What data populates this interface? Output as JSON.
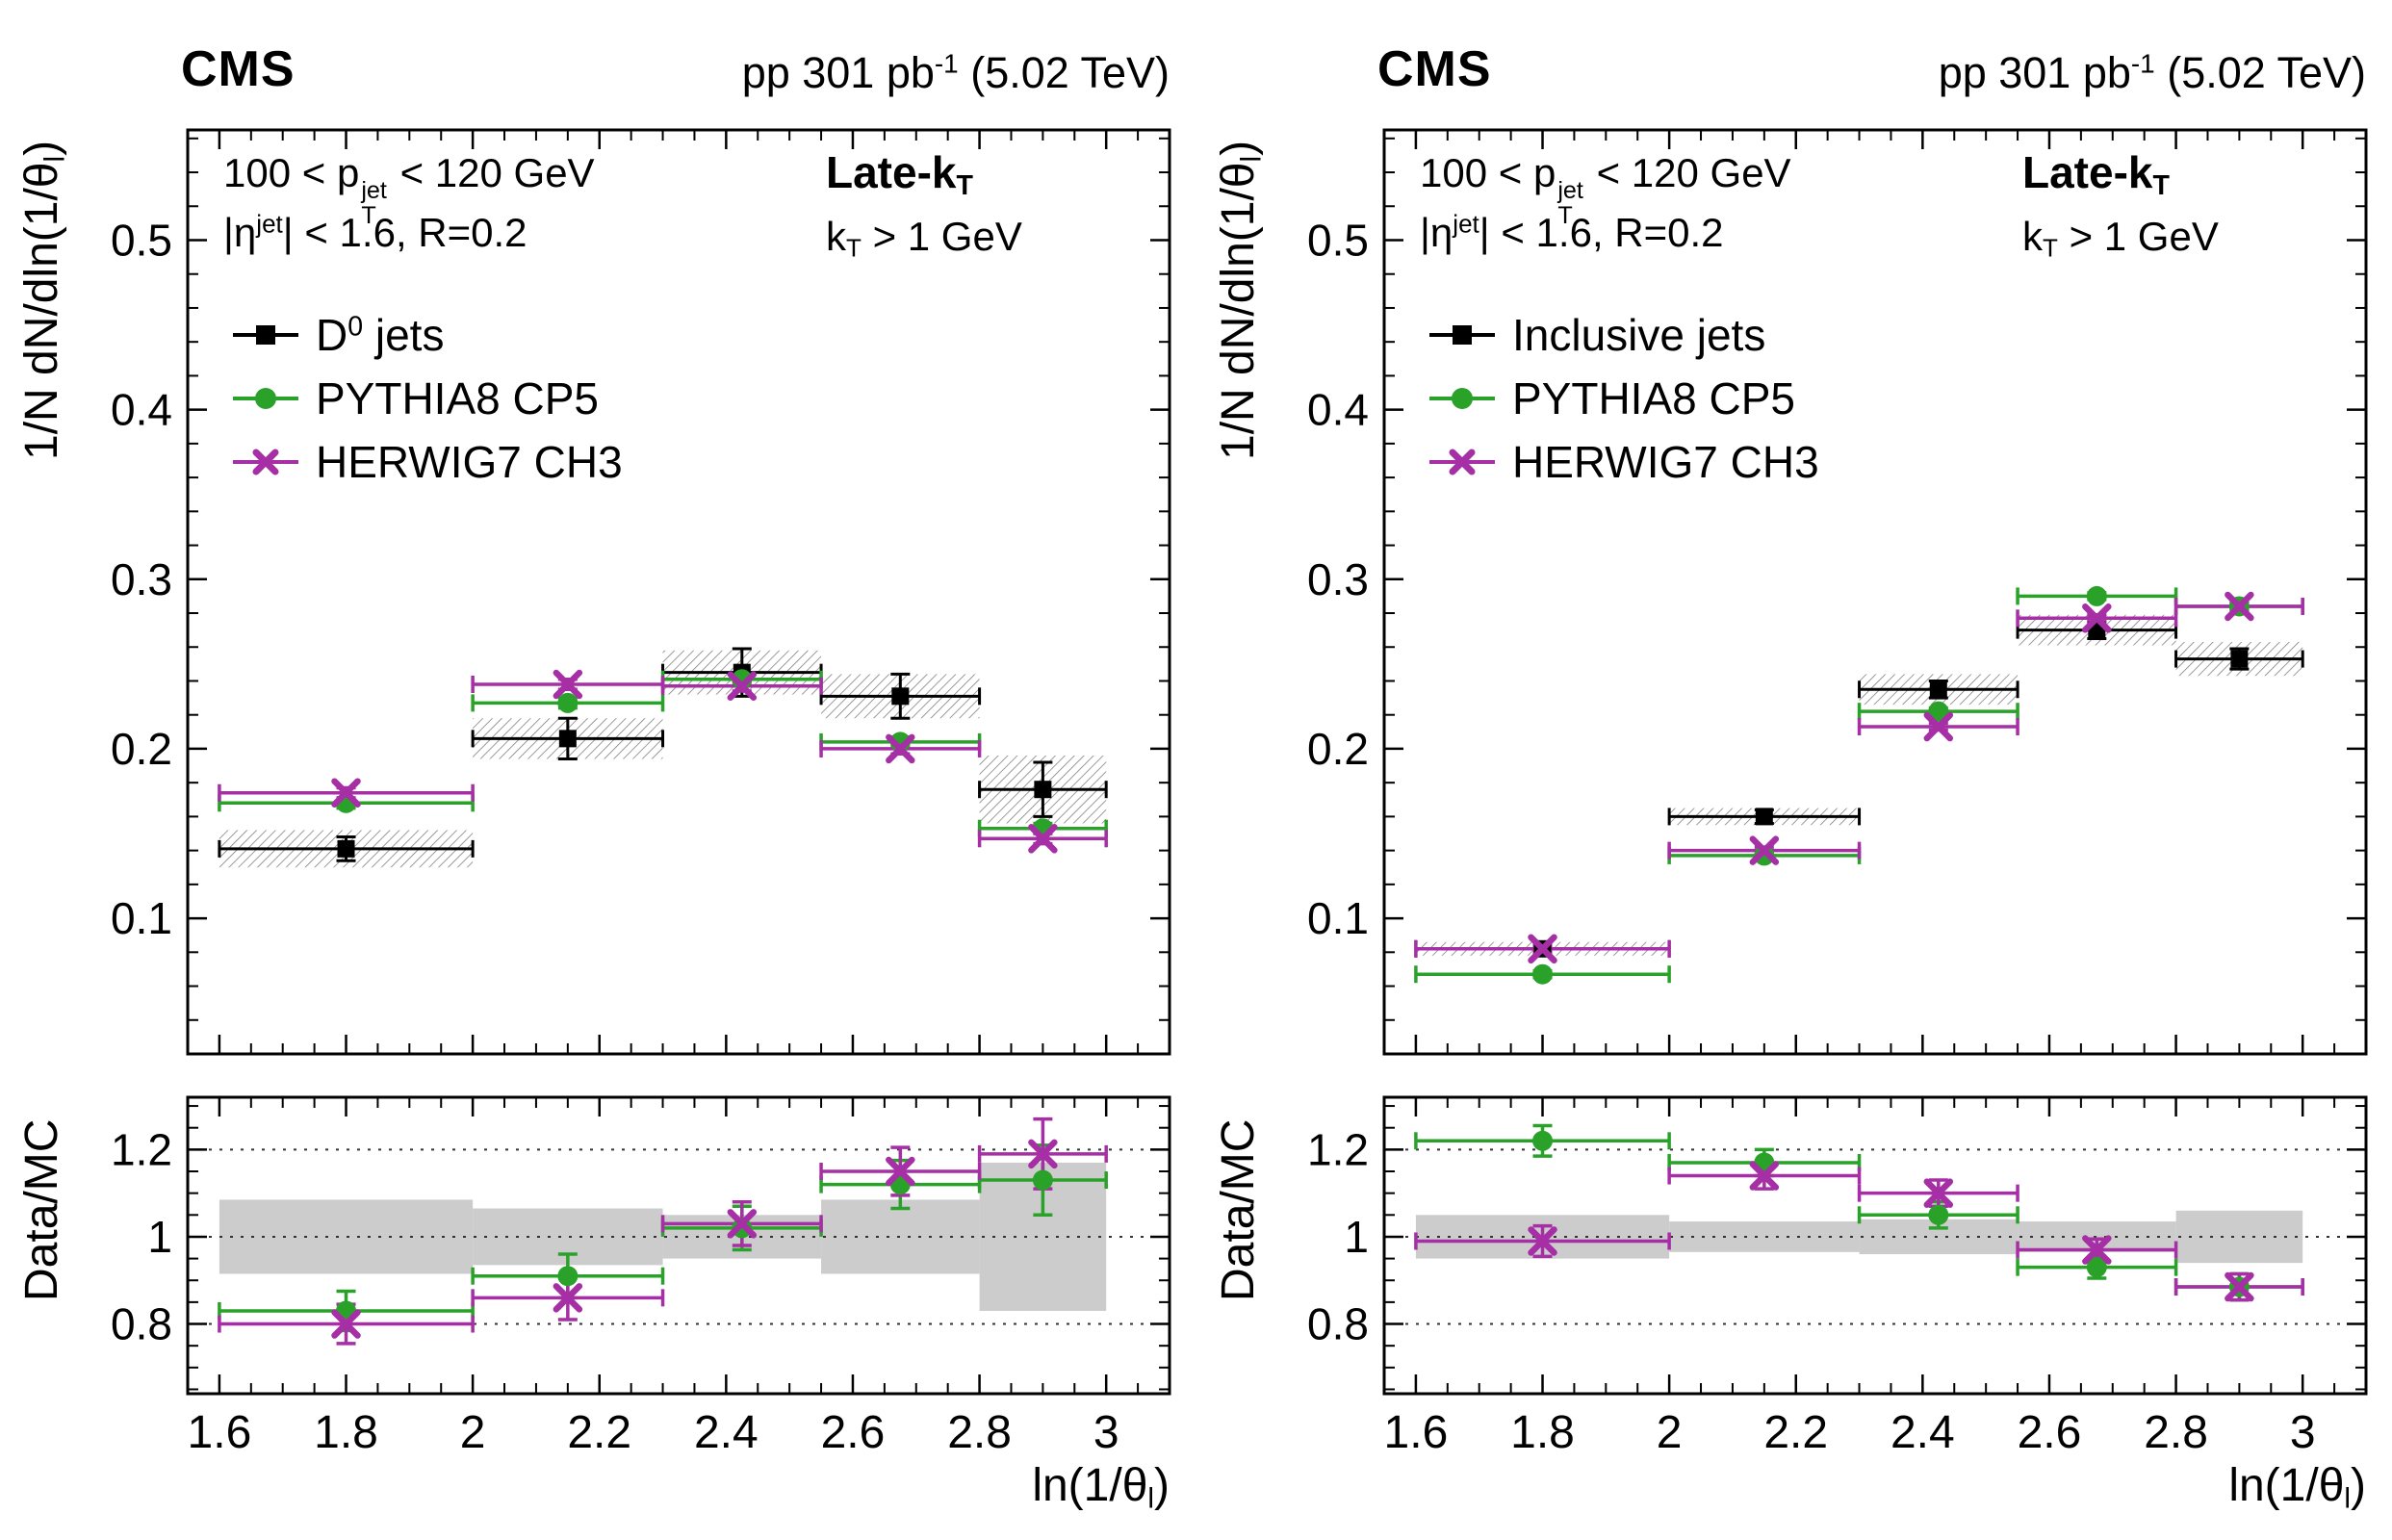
{
  "accent_colors": {
    "data": "#000000",
    "pythia": "#2aa22a",
    "herwig": "#a62fa6",
    "ratio_band": "#cccccc",
    "hatch": "#7a7a7a"
  },
  "panels": [
    {
      "name": "dzero-jets",
      "header": {
        "experiment": "CMS",
        "lumi": {
          "pre": "pp 301 pb",
          "sup": "-1",
          "post": " (5.02 TeV)"
        }
      },
      "ann": {
        "pt": {
          "pre": "100 < p",
          "sup": "jet",
          "sub": "T",
          "post": " < 120 GeV"
        },
        "eta": {
          "pre": "|η",
          "sup": "jet",
          "post": "| < 1.6, R=0.2"
        },
        "tag": {
          "pre": "Late-k",
          "sub": "T"
        },
        "cut": {
          "pre": "k",
          "sub": "T",
          "post": " > 1 GeV"
        }
      },
      "legend": [
        {
          "label": {
            "pre": "D",
            "sup": "0",
            "post": " jets"
          },
          "marker": "square",
          "color": "#000000"
        },
        {
          "label": {
            "pre": "PYTHIA8 CP5",
            "sup": "",
            "post": ""
          },
          "marker": "circle",
          "color": "#2aa22a"
        },
        {
          "label": {
            "pre": "HERWIG7 CH3",
            "sup": "",
            "post": ""
          },
          "marker": "cross",
          "color": "#a62fa6"
        }
      ],
      "ylabel": {
        "pre": "1/N dN/dln(1/θ",
        "sub": "l",
        "post": ")"
      },
      "ratio_ylabel": "Data/MC",
      "xlabel": {
        "pre": "ln(1/θ",
        "sub": "l",
        "post": ")"
      }
    },
    {
      "name": "inclusive-jets",
      "header": {
        "experiment": "CMS",
        "lumi": {
          "pre": "pp 301 pb",
          "sup": "-1",
          "post": " (5.02 TeV)"
        }
      },
      "ann": {
        "pt": {
          "pre": "100 < p",
          "sup": "jet",
          "sub": "T",
          "post": " < 120 GeV"
        },
        "eta": {
          "pre": "|η",
          "sup": "jet",
          "post": "| < 1.6, R=0.2"
        },
        "tag": {
          "pre": "Late-k",
          "sub": "T"
        },
        "cut": {
          "pre": "k",
          "sub": "T",
          "post": " > 1 GeV"
        }
      },
      "legend": [
        {
          "label": {
            "pre": "Inclusive jets",
            "sup": "",
            "post": ""
          },
          "marker": "square",
          "color": "#000000"
        },
        {
          "label": {
            "pre": "PYTHIA8 CP5",
            "sup": "",
            "post": ""
          },
          "marker": "circle",
          "color": "#2aa22a"
        },
        {
          "label": {
            "pre": "HERWIG7 CH3",
            "sup": "",
            "post": ""
          },
          "marker": "cross",
          "color": "#a62fa6"
        }
      ],
      "ylabel": {
        "pre": "1/N dN/dln(1/θ",
        "sub": "l",
        "post": ")"
      },
      "ratio_ylabel": "Data/MC",
      "xlabel": {
        "pre": "ln(1/θ",
        "sub": "l",
        "post": ")"
      }
    }
  ],
  "chart_data": [
    {
      "type": "scatter",
      "panel": "left",
      "role": "main",
      "title": "CMS pp 301 pb-1 (5.02 TeV), D0 jets, Late-kT, kT > 1 GeV, 100 < pTjet < 120 GeV, |etajet| < 1.6, R=0.2",
      "xlabel": "ln(1/theta_l)",
      "ylabel": "1/N dN/dln(1/theta_l)",
      "xlim": [
        1.55,
        3.1
      ],
      "ylim": [
        0.02,
        0.565
      ],
      "bins": [
        [
          1.6,
          2.0
        ],
        [
          2.0,
          2.3
        ],
        [
          2.3,
          2.55
        ],
        [
          2.55,
          2.8
        ],
        [
          2.8,
          3.0
        ]
      ],
      "x": [
        1.8,
        2.15,
        2.425,
        2.675,
        2.9
      ],
      "xticks": {
        "values": [
          1.6,
          1.8,
          2.0,
          2.2,
          2.4,
          2.6,
          2.8,
          3.0
        ],
        "labels": [
          "1.6",
          "1.8",
          "2",
          "2.2",
          "2.4",
          "2.6",
          "2.8",
          "3"
        ],
        "minor_step": 0.05
      },
      "yticks": {
        "values": [
          0.1,
          0.2,
          0.3,
          0.4,
          0.5
        ],
        "labels": [
          "0.1",
          "0.2",
          "0.3",
          "0.4",
          "0.5"
        ],
        "minor_step": 0.02
      },
      "show_xtick_labels": false,
      "series": [
        {
          "name": "D0 jets",
          "marker": "square",
          "color": "#000000",
          "values": [
            0.141,
            0.206,
            0.245,
            0.231,
            0.176
          ],
          "stat_err": [
            0.007,
            0.012,
            0.014,
            0.013,
            0.016
          ],
          "syst_band": [
            0.011,
            0.012,
            0.013,
            0.013,
            0.02
          ]
        },
        {
          "name": "PYTHIA8 CP5",
          "marker": "circle",
          "color": "#2aa22a",
          "values": [
            0.168,
            0.227,
            0.241,
            0.204,
            0.153
          ],
          "stat_err": [
            0.003,
            0.003,
            0.003,
            0.003,
            0.003
          ]
        },
        {
          "name": "HERWIG7 CH3",
          "marker": "cross",
          "color": "#a62fa6",
          "values": [
            0.174,
            0.238,
            0.237,
            0.2,
            0.147
          ],
          "stat_err": [
            0.003,
            0.003,
            0.003,
            0.003,
            0.003
          ]
        }
      ]
    },
    {
      "type": "scatter",
      "panel": "left",
      "role": "ratio",
      "title": "Data/MC ratio, D0 jets",
      "xlabel": "ln(1/theta_l)",
      "ylabel": "Data/MC",
      "xlim": [
        1.55,
        3.1
      ],
      "ylim": [
        0.64,
        1.32
      ],
      "bins": [
        [
          1.6,
          2.0
        ],
        [
          2.0,
          2.3
        ],
        [
          2.3,
          2.55
        ],
        [
          2.55,
          2.8
        ],
        [
          2.8,
          3.0
        ]
      ],
      "x": [
        1.8,
        2.15,
        2.425,
        2.675,
        2.9
      ],
      "xticks": {
        "values": [
          1.6,
          1.8,
          2.0,
          2.2,
          2.4,
          2.6,
          2.8,
          3.0
        ],
        "labels": [
          "1.6",
          "1.8",
          "2",
          "2.2",
          "2.4",
          "2.6",
          "2.8",
          "3"
        ],
        "minor_step": 0.05
      },
      "yticks": {
        "values": [
          0.8,
          1.0,
          1.2
        ],
        "labels": [
          "0.8",
          "1",
          "1.2"
        ],
        "minor_step": 0.05
      },
      "show_xtick_labels": true,
      "hlines": [
        0.8,
        1.0,
        1.2
      ],
      "band": {
        "center": 1.0,
        "color": "#cccccc",
        "halfwidths": [
          0.085,
          0.065,
          0.05,
          0.085,
          0.17
        ]
      },
      "series": [
        {
          "name": "Data/PYTHIA8 CP5",
          "marker": "circle",
          "color": "#2aa22a",
          "values": [
            0.83,
            0.91,
            1.02,
            1.12,
            1.13
          ],
          "stat_err": [
            0.045,
            0.05,
            0.05,
            0.055,
            0.08
          ]
        },
        {
          "name": "Data/HERWIG7 CH3",
          "marker": "cross",
          "color": "#a62fa6",
          "values": [
            0.8,
            0.86,
            1.03,
            1.15,
            1.19
          ],
          "stat_err": [
            0.045,
            0.05,
            0.05,
            0.055,
            0.08
          ]
        }
      ]
    },
    {
      "type": "scatter",
      "panel": "right",
      "role": "main",
      "title": "CMS pp 301 pb-1 (5.02 TeV), Inclusive jets, Late-kT, kT > 1 GeV, 100 < pTjet < 120 GeV, |etajet| < 1.6, R=0.2",
      "xlabel": "ln(1/theta_l)",
      "ylabel": "1/N dN/dln(1/theta_l)",
      "xlim": [
        1.55,
        3.1
      ],
      "ylim": [
        0.02,
        0.565
      ],
      "bins": [
        [
          1.6,
          2.0
        ],
        [
          2.0,
          2.3
        ],
        [
          2.3,
          2.55
        ],
        [
          2.55,
          2.8
        ],
        [
          2.8,
          3.0
        ]
      ],
      "x": [
        1.8,
        2.15,
        2.425,
        2.675,
        2.9
      ],
      "xticks": {
        "values": [
          1.6,
          1.8,
          2.0,
          2.2,
          2.4,
          2.6,
          2.8,
          3.0
        ],
        "labels": [
          "1.6",
          "1.8",
          "2",
          "2.2",
          "2.4",
          "2.6",
          "2.8",
          "3"
        ],
        "minor_step": 0.05
      },
      "yticks": {
        "values": [
          0.1,
          0.2,
          0.3,
          0.4,
          0.5
        ],
        "labels": [
          "0.1",
          "0.2",
          "0.3",
          "0.4",
          "0.5"
        ],
        "minor_step": 0.02
      },
      "show_xtick_labels": false,
      "series": [
        {
          "name": "Inclusive jets",
          "marker": "square",
          "color": "#000000",
          "values": [
            0.082,
            0.16,
            0.235,
            0.27,
            0.253
          ],
          "stat_err": [
            0.003,
            0.004,
            0.005,
            0.005,
            0.006
          ],
          "syst_band": [
            0.004,
            0.005,
            0.009,
            0.009,
            0.01
          ]
        },
        {
          "name": "PYTHIA8 CP5",
          "marker": "circle",
          "color": "#2aa22a",
          "values": [
            0.067,
            0.137,
            0.222,
            0.29,
            0.284
          ],
          "stat_err": [
            0.002,
            0.002,
            0.002,
            0.002,
            0.002
          ]
        },
        {
          "name": "HERWIG7 CH3",
          "marker": "cross",
          "color": "#a62fa6",
          "values": [
            0.082,
            0.14,
            0.213,
            0.277,
            0.284
          ],
          "stat_err": [
            0.002,
            0.002,
            0.002,
            0.002,
            0.002
          ]
        }
      ]
    },
    {
      "type": "scatter",
      "panel": "right",
      "role": "ratio",
      "title": "Data/MC ratio, Inclusive jets",
      "xlabel": "ln(1/theta_l)",
      "ylabel": "Data/MC",
      "xlim": [
        1.55,
        3.1
      ],
      "ylim": [
        0.64,
        1.32
      ],
      "bins": [
        [
          1.6,
          2.0
        ],
        [
          2.0,
          2.3
        ],
        [
          2.3,
          2.55
        ],
        [
          2.55,
          2.8
        ],
        [
          2.8,
          3.0
        ]
      ],
      "x": [
        1.8,
        2.15,
        2.425,
        2.675,
        2.9
      ],
      "xticks": {
        "values": [
          1.6,
          1.8,
          2.0,
          2.2,
          2.4,
          2.6,
          2.8,
          3.0
        ],
        "labels": [
          "1.6",
          "1.8",
          "2",
          "2.2",
          "2.4",
          "2.6",
          "2.8",
          "3"
        ],
        "minor_step": 0.05
      },
      "yticks": {
        "values": [
          0.8,
          1.0,
          1.2
        ],
        "labels": [
          "0.8",
          "1",
          "1.2"
        ],
        "minor_step": 0.05
      },
      "show_xtick_labels": true,
      "hlines": [
        0.8,
        1.0,
        1.2
      ],
      "band": {
        "center": 1.0,
        "color": "#cccccc",
        "halfwidths": [
          0.05,
          0.035,
          0.04,
          0.035,
          0.06
        ]
      },
      "series": [
        {
          "name": "Data/PYTHIA8 CP5",
          "marker": "circle",
          "color": "#2aa22a",
          "values": [
            1.22,
            1.17,
            1.05,
            0.93,
            0.885
          ],
          "stat_err": [
            0.035,
            0.03,
            0.03,
            0.025,
            0.03
          ]
        },
        {
          "name": "Data/HERWIG7 CH3",
          "marker": "cross",
          "color": "#a62fa6",
          "values": [
            0.99,
            1.14,
            1.1,
            0.97,
            0.885
          ],
          "stat_err": [
            0.035,
            0.03,
            0.03,
            0.025,
            0.03
          ]
        }
      ]
    }
  ]
}
